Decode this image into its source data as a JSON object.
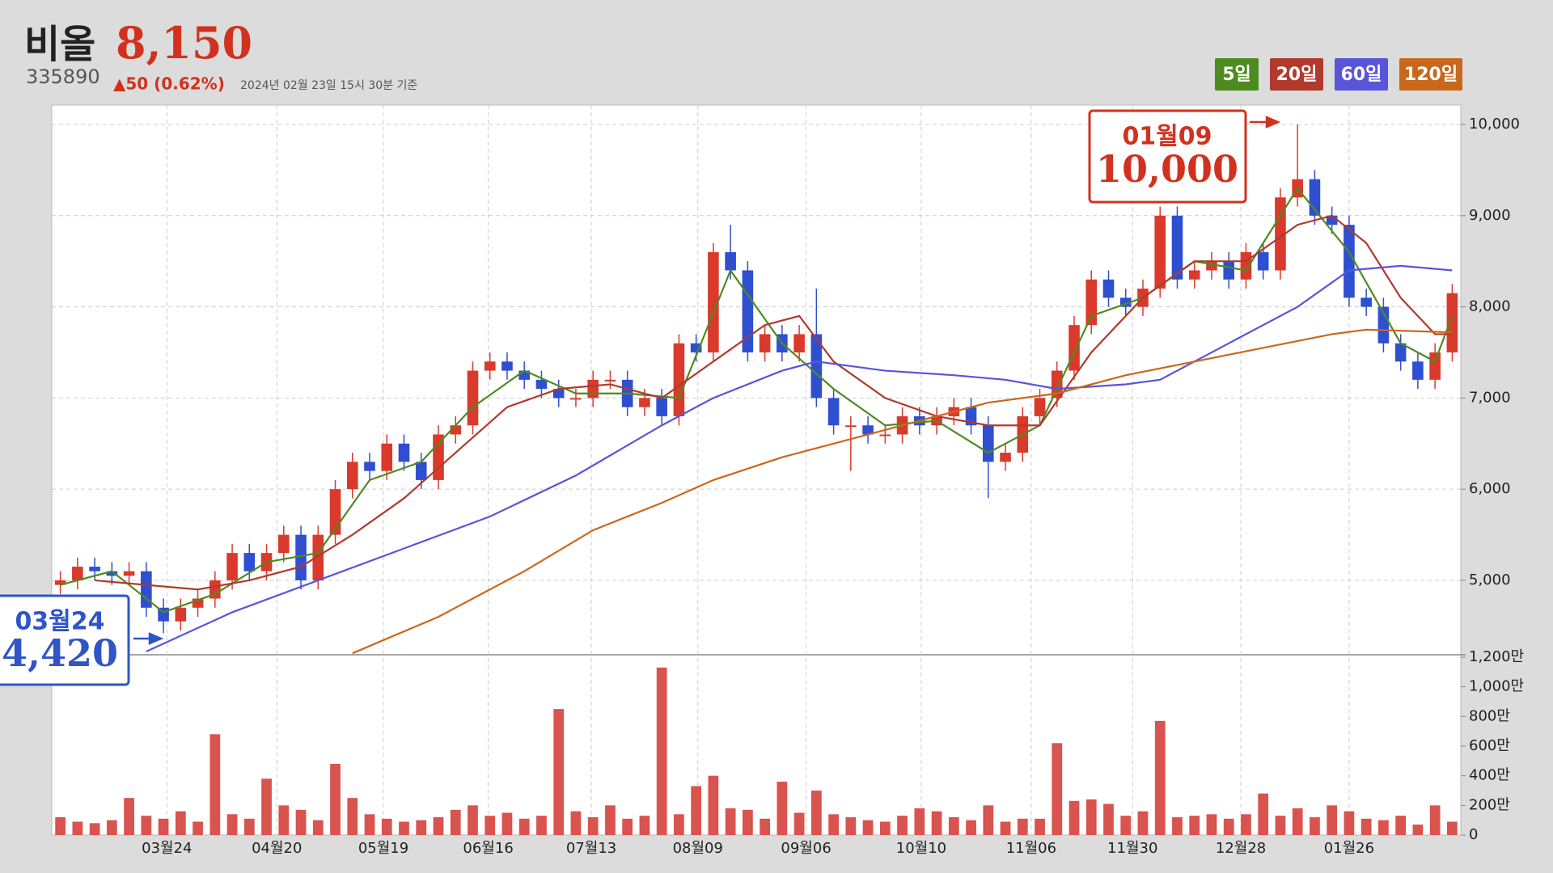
{
  "header": {
    "name": "비올",
    "price": "8,150",
    "code": "335890",
    "change": "▲50 (0.62%)",
    "timestamp": "2024년 02월 23일 15시 30분 기준"
  },
  "chart_data": {
    "type": "candlestick",
    "xlim": [
      -0.5,
      81.5
    ],
    "xticks": [
      {
        "value": 6.2,
        "label": "03월24"
      },
      {
        "value": 12.6,
        "label": "04월20"
      },
      {
        "value": 18.8,
        "label": "05월19"
      },
      {
        "value": 24.9,
        "label": "06월16"
      },
      {
        "value": 30.9,
        "label": "07월13"
      },
      {
        "value": 37.1,
        "label": "08월09"
      },
      {
        "value": 43.4,
        "label": "09월06"
      },
      {
        "value": 50.1,
        "label": "10월10"
      },
      {
        "value": 56.5,
        "label": "11월06"
      },
      {
        "value": 62.4,
        "label": "11월30"
      },
      {
        "value": 68.7,
        "label": "12월28"
      },
      {
        "value": 75.0,
        "label": "01월26"
      }
    ],
    "ylim": [
      4184,
      10213
    ],
    "yticks": [
      {
        "value": 5000,
        "label": "5,000"
      },
      {
        "value": 6000,
        "label": "6,000"
      },
      {
        "value": 7000,
        "label": "7,000"
      },
      {
        "value": 8000,
        "label": "8,000"
      },
      {
        "value": 9000,
        "label": "9,000"
      },
      {
        "value": 10000,
        "label": "10,000"
      }
    ],
    "grid": true,
    "up_color": "#d93a2b",
    "down_color": "#2f4fd1",
    "open": [
      4950,
      5000,
      5150,
      5100,
      5050,
      5100,
      4700,
      4550,
      4700,
      4800,
      5000,
      5300,
      5100,
      5300,
      5500,
      5000,
      5500,
      6000,
      6300,
      6200,
      6500,
      6300,
      6100,
      6600,
      6700,
      7300,
      7400,
      7300,
      7200,
      7100,
      7000,
      7000,
      7200,
      7200,
      6900,
      7000,
      6800,
      7600,
      7500,
      8600,
      8400,
      7500,
      7700,
      7500,
      7700,
      7000,
      6700,
      6700,
      6600,
      6600,
      6800,
      6700,
      6800,
      6900,
      6700,
      6300,
      6400,
      6800,
      7000,
      7300,
      7800,
      8300,
      8100,
      8000,
      8200,
      9000,
      8300,
      8400,
      8500,
      8300,
      8600,
      8400,
      9200,
      9400,
      9000,
      8900,
      8100,
      8000,
      7600,
      7400,
      7200,
      7500
    ],
    "high": [
      5100,
      5250,
      5250,
      5200,
      5200,
      5200,
      4800,
      4800,
      4900,
      5100,
      5400,
      5400,
      5400,
      5600,
      5600,
      5600,
      6100,
      6400,
      6400,
      6600,
      6600,
      6400,
      6700,
      6800,
      7400,
      7500,
      7500,
      7400,
      7300,
      7200,
      7100,
      7300,
      7300,
      7300,
      7100,
      7100,
      7700,
      7700,
      8700,
      8900,
      8500,
      7800,
      7800,
      7800,
      8200,
      7100,
      6800,
      6800,
      6700,
      6900,
      6900,
      6900,
      7000,
      7000,
      6800,
      6500,
      6900,
      7100,
      7400,
      7900,
      8400,
      8400,
      8200,
      8300,
      9100,
      9100,
      8500,
      8600,
      8600,
      8700,
      8700,
      9300,
      10000,
      9500,
      9100,
      9000,
      8200,
      8100,
      7700,
      7500,
      7600,
      8250
    ],
    "low": [
      4850,
      4900,
      5000,
      4950,
      4950,
      4600,
      4420,
      4450,
      4600,
      4700,
      4900,
      5000,
      5000,
      5200,
      4900,
      4900,
      5400,
      5900,
      6100,
      6100,
      6200,
      6000,
      6000,
      6500,
      6600,
      7200,
      7200,
      7100,
      7000,
      6900,
      6900,
      6900,
      7100,
      6800,
      6800,
      6700,
      6700,
      7400,
      7400,
      8300,
      7400,
      7400,
      7400,
      7400,
      6900,
      6600,
      6200,
      6500,
      6500,
      6500,
      6600,
      6600,
      6700,
      6600,
      5900,
      6200,
      6300,
      6700,
      6900,
      7200,
      7700,
      8000,
      7900,
      7900,
      8100,
      8200,
      8200,
      8300,
      8200,
      8200,
      8300,
      8300,
      9100,
      8900,
      8800,
      8000,
      7900,
      7500,
      7300,
      7100,
      7100,
      7400
    ],
    "close": [
      5000,
      5150,
      5100,
      5050,
      5100,
      4700,
      4550,
      4700,
      4800,
      5000,
      5300,
      5100,
      5300,
      5500,
      5000,
      5500,
      6000,
      6300,
      6200,
      6500,
      6300,
      6100,
      6600,
      6700,
      7300,
      7400,
      7300,
      7200,
      7100,
      7000,
      7000,
      7200,
      7200,
      6900,
      7000,
      6800,
      7600,
      7500,
      8600,
      8400,
      7500,
      7700,
      7500,
      7700,
      7000,
      6700,
      6700,
      6600,
      6600,
      6800,
      6700,
      6800,
      6900,
      6700,
      6300,
      6400,
      6800,
      7000,
      7300,
      7800,
      8300,
      8100,
      8000,
      8200,
      9000,
      8300,
      8400,
      8500,
      8300,
      8600,
      8400,
      9200,
      9400,
      9000,
      8900,
      8100,
      8000,
      7600,
      7400,
      7200,
      7500,
      8150
    ],
    "series": [
      {
        "name": "5일",
        "color": "#4e8b1f",
        "x": [
          0,
          3,
          6,
          9,
          12,
          15,
          18,
          21,
          24,
          27,
          30,
          33,
          36,
          39,
          42,
          45,
          48,
          51,
          54,
          57,
          60,
          63,
          66,
          69,
          72,
          75,
          78,
          80,
          81
        ],
        "values": [
          4950,
          5100,
          4650,
          4850,
          5200,
          5300,
          6100,
          6300,
          6900,
          7300,
          7050,
          7050,
          7000,
          8400,
          7600,
          7100,
          6700,
          6750,
          6400,
          6700,
          7900,
          8100,
          8500,
          8400,
          9300,
          8600,
          7600,
          7400,
          7900
        ]
      },
      {
        "name": "20일",
        "color": "#b13a2c",
        "x": [
          2,
          5,
          8,
          11,
          14,
          17,
          20,
          23,
          26,
          29,
          32,
          35,
          38,
          41,
          43,
          45,
          48,
          51,
          54,
          57,
          60,
          63,
          66,
          69,
          72,
          74,
          76,
          78,
          80,
          81
        ],
        "values": [
          5000,
          4950,
          4900,
          5000,
          5150,
          5500,
          5900,
          6400,
          6900,
          7100,
          7150,
          7000,
          7400,
          7800,
          7900,
          7400,
          7000,
          6800,
          6700,
          6700,
          7500,
          8100,
          8500,
          8500,
          8900,
          9000,
          8700,
          8100,
          7700,
          7700
        ]
      },
      {
        "name": "60일",
        "color": "#5955d9",
        "x": [
          5,
          10,
          15,
          20,
          25,
          30,
          35,
          38,
          42,
          44,
          48,
          52,
          55,
          58,
          62,
          64,
          68,
          72,
          75,
          78,
          81
        ],
        "values": [
          4220,
          4650,
          5000,
          5350,
          5700,
          6150,
          6700,
          7000,
          7300,
          7400,
          7300,
          7250,
          7200,
          7100,
          7150,
          7200,
          7600,
          8000,
          8400,
          8450,
          8400
        ]
      },
      {
        "name": "120일",
        "color": "#c9681c",
        "x": [
          17,
          22,
          27,
          31,
          35,
          38,
          42,
          46,
          50,
          54,
          58,
          62,
          66,
          70,
          74,
          76,
          81
        ],
        "values": [
          4200,
          4600,
          5100,
          5550,
          5850,
          6100,
          6350,
          6550,
          6750,
          6950,
          7050,
          7250,
          7400,
          7550,
          7700,
          7750,
          7720
        ]
      }
    ],
    "volume": {
      "color": "#d9534f",
      "ylim": [
        0,
        1200
      ],
      "yticks": [
        0,
        {
          "value": 200,
          "label": "200만"
        },
        {
          "value": 400,
          "label": "400만"
        },
        {
          "value": 600,
          "label": "600만"
        },
        {
          "value": 800,
          "label": "800만"
        },
        {
          "value": 1000,
          "label": "1,000만"
        },
        {
          "value": 1200,
          "label": "1,200만"
        }
      ],
      "values": [
        120,
        90,
        80,
        100,
        250,
        130,
        110,
        160,
        90,
        680,
        140,
        110,
        380,
        200,
        170,
        100,
        480,
        250,
        140,
        110,
        90,
        100,
        120,
        170,
        200,
        130,
        150,
        110,
        130,
        850,
        160,
        120,
        200,
        110,
        130,
        1130,
        140,
        330,
        400,
        180,
        170,
        110,
        360,
        150,
        300,
        140,
        120,
        100,
        90,
        130,
        180,
        160,
        120,
        100,
        200,
        90,
        110,
        110,
        620,
        230,
        240,
        210,
        130,
        160,
        770,
        120,
        130,
        140,
        110,
        140,
        280,
        130,
        180,
        120,
        200,
        160,
        110,
        100,
        130,
        70,
        200,
        90
      ]
    },
    "annotations": [
      {
        "date": "01월09",
        "label": "10,000",
        "color": "#d0321f"
      },
      {
        "date": "03월24",
        "label": "4,420",
        "color": "#2f55c8"
      }
    ]
  }
}
